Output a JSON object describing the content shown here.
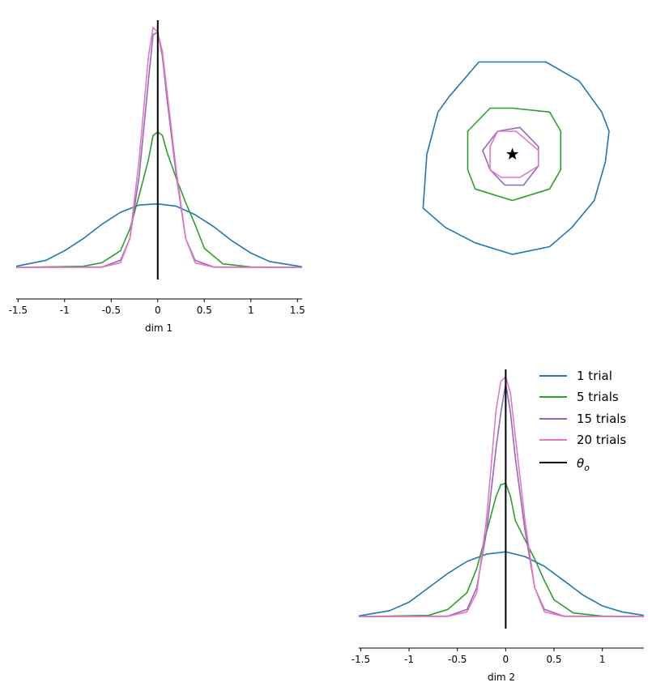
{
  "colors": {
    "1_trial": "#1f77b4",
    "5_trials": "#2ca02c",
    "15_trials": "#9467bd",
    "20_trials": "#e377c2",
    "theta_o": "#000000"
  },
  "chart_data": [
    {
      "type": "line",
      "panel": "dim-1-marginal",
      "xlabel": "dim 1",
      "ylabel": "",
      "xlim": [
        -1.52,
        1.55
      ],
      "ylim": [
        -0.05,
        1.03
      ],
      "xticks": [
        -1.5,
        -1,
        -0.5,
        0,
        0.5,
        1,
        1.5
      ],
      "xtick_labels": [
        "-1.5",
        "-1",
        "-0.5",
        "0",
        "0.5",
        "1",
        "1.5"
      ],
      "theta_o": 0,
      "theta_span": [
        -0.05,
        1.03
      ],
      "series": [
        {
          "key": "1_trial",
          "x": [
            -1.52,
            -1.2,
            -1.0,
            -0.8,
            -0.6,
            -0.4,
            -0.2,
            0.0,
            0.2,
            0.4,
            0.6,
            0.8,
            1.0,
            1.2,
            1.55
          ],
          "y": [
            0.005,
            0.03,
            0.07,
            0.12,
            0.18,
            0.23,
            0.26,
            0.265,
            0.255,
            0.22,
            0.17,
            0.11,
            0.06,
            0.025,
            0.003
          ]
        },
        {
          "key": "5_trials",
          "x": [
            -1.52,
            -0.8,
            -0.6,
            -0.4,
            -0.3,
            -0.2,
            -0.1,
            -0.05,
            0.0,
            0.05,
            0.1,
            0.2,
            0.3,
            0.4,
            0.5,
            0.7,
            1.0,
            1.55
          ],
          "y": [
            0.0,
            0.005,
            0.02,
            0.07,
            0.16,
            0.3,
            0.45,
            0.55,
            0.565,
            0.55,
            0.48,
            0.37,
            0.27,
            0.18,
            0.08,
            0.015,
            0.002,
            0.0
          ]
        },
        {
          "key": "15_trials",
          "x": [
            -1.52,
            -0.6,
            -0.4,
            -0.3,
            -0.2,
            -0.1,
            -0.05,
            0.0,
            0.05,
            0.1,
            0.2,
            0.3,
            0.4,
            0.6,
            1.55
          ],
          "y": [
            0.0,
            0.002,
            0.03,
            0.12,
            0.38,
            0.78,
            0.97,
            0.98,
            0.88,
            0.7,
            0.38,
            0.12,
            0.03,
            0.002,
            0.0
          ]
        },
        {
          "key": "20_trials",
          "x": [
            -1.52,
            -0.6,
            -0.4,
            -0.3,
            -0.2,
            -0.1,
            -0.05,
            0.0,
            0.05,
            0.1,
            0.2,
            0.3,
            0.4,
            0.6,
            1.55
          ],
          "y": [
            0.0,
            0.001,
            0.02,
            0.12,
            0.45,
            0.88,
            1.0,
            0.98,
            0.9,
            0.73,
            0.4,
            0.12,
            0.02,
            0.001,
            0.0
          ]
        }
      ]
    },
    {
      "type": "line",
      "panel": "joint-contour",
      "xlabel": "",
      "ylabel": "",
      "xlim": [
        -1.52,
        1.55
      ],
      "ylim": [
        -1.5,
        1.5
      ],
      "marker": {
        "x": 0,
        "y": 0,
        "symbol": "star",
        "key": "theta_o"
      },
      "series": [
        {
          "key": "1_trial",
          "x": [
            -0.45,
            0.0,
            0.45,
            0.9,
            1.2,
            1.3,
            1.25,
            1.1,
            0.8,
            0.5,
            0.0,
            -0.5,
            -0.9,
            -1.2,
            -1.15,
            -1.0,
            -0.85,
            -0.45
          ],
          "y": [
            1.2,
            1.2,
            1.2,
            0.95,
            0.55,
            0.3,
            -0.1,
            -0.6,
            -0.95,
            -1.2,
            -1.3,
            -1.15,
            -0.95,
            -0.7,
            0.0,
            0.55,
            0.75,
            1.2
          ]
        },
        {
          "key": "5_trials",
          "x": [
            -0.3,
            0.0,
            0.5,
            0.65,
            0.65,
            0.5,
            0.0,
            -0.5,
            -0.6,
            -0.6,
            -0.3
          ],
          "y": [
            0.6,
            0.6,
            0.55,
            0.3,
            -0.2,
            -0.45,
            -0.6,
            -0.45,
            -0.2,
            0.3,
            0.6
          ]
        },
        {
          "key": "15_trials",
          "x": [
            -0.2,
            0.1,
            0.35,
            0.35,
            0.15,
            -0.1,
            -0.3,
            -0.4,
            -0.2
          ],
          "y": [
            0.3,
            0.35,
            0.1,
            -0.15,
            -0.4,
            -0.4,
            -0.2,
            0.05,
            0.3
          ]
        },
        {
          "key": "20_trials",
          "x": [
            -0.2,
            0.05,
            0.35,
            0.35,
            0.1,
            -0.15,
            -0.3,
            -0.3,
            -0.2
          ],
          "y": [
            0.3,
            0.3,
            0.05,
            -0.15,
            -0.3,
            -0.3,
            -0.2,
            0.1,
            0.3
          ]
        }
      ]
    },
    {
      "type": "line",
      "panel": "dim-2-marginal",
      "xlabel": "dim 2",
      "ylabel": "",
      "xlim": [
        -1.52,
        1.43
      ],
      "ylim": [
        -0.05,
        1.03
      ],
      "xticks": [
        -1.5,
        -1,
        -0.5,
        0,
        0.5,
        1
      ],
      "xtick_labels": [
        "-1.5",
        "-1",
        "-0.5",
        "0",
        "0.5",
        "1"
      ],
      "theta_o": 0,
      "theta_span": [
        -0.05,
        1.03
      ],
      "legend_position": "top-right",
      "series": [
        {
          "key": "1_trial",
          "name": "1 trial",
          "x": [
            -1.52,
            -1.2,
            -1.0,
            -0.8,
            -0.6,
            -0.4,
            -0.2,
            0.0,
            0.2,
            0.4,
            0.6,
            0.8,
            1.0,
            1.2,
            1.43
          ],
          "y": [
            0.003,
            0.025,
            0.06,
            0.12,
            0.18,
            0.23,
            0.26,
            0.27,
            0.25,
            0.21,
            0.15,
            0.09,
            0.045,
            0.02,
            0.005
          ]
        },
        {
          "key": "5_trials",
          "name": "5 trials",
          "x": [
            -1.52,
            -0.8,
            -0.6,
            -0.4,
            -0.3,
            -0.2,
            -0.1,
            -0.05,
            0.0,
            0.05,
            0.1,
            0.2,
            0.3,
            0.4,
            0.5,
            0.7,
            1.0,
            1.43
          ],
          "y": [
            0.0,
            0.005,
            0.03,
            0.1,
            0.2,
            0.35,
            0.5,
            0.55,
            0.555,
            0.5,
            0.4,
            0.32,
            0.24,
            0.15,
            0.07,
            0.015,
            0.002,
            0.0
          ]
        },
        {
          "key": "15_trials",
          "name": "15 trials",
          "x": [
            -1.52,
            -0.6,
            -0.4,
            -0.3,
            -0.2,
            -0.1,
            -0.05,
            0.0,
            0.05,
            0.1,
            0.2,
            0.3,
            0.4,
            0.6,
            1.43
          ],
          "y": [
            0.0,
            0.002,
            0.03,
            0.12,
            0.35,
            0.7,
            0.85,
            0.97,
            0.85,
            0.66,
            0.36,
            0.12,
            0.03,
            0.002,
            0.0
          ]
        },
        {
          "key": "20_trials",
          "name": "20 trials",
          "x": [
            -1.52,
            -0.6,
            -0.4,
            -0.3,
            -0.2,
            -0.1,
            -0.05,
            0.0,
            0.05,
            0.1,
            0.2,
            0.3,
            0.4,
            0.6,
            1.43
          ],
          "y": [
            0.0,
            0.001,
            0.02,
            0.1,
            0.4,
            0.86,
            0.98,
            1.0,
            0.93,
            0.75,
            0.4,
            0.12,
            0.02,
            0.001,
            0.0
          ]
        }
      ]
    }
  ],
  "legend": [
    {
      "key": "1_trial",
      "label": "1 trial",
      "italic_theta": false
    },
    {
      "key": "5_trials",
      "label": "5 trials",
      "italic_theta": false
    },
    {
      "key": "15_trials",
      "label": "15 trials",
      "italic_theta": false
    },
    {
      "key": "20_trials",
      "label": "20 trials",
      "italic_theta": false
    },
    {
      "key": "theta_o",
      "label": "θo",
      "symbol": "θ",
      "subscript": "o",
      "italic_theta": true
    }
  ]
}
